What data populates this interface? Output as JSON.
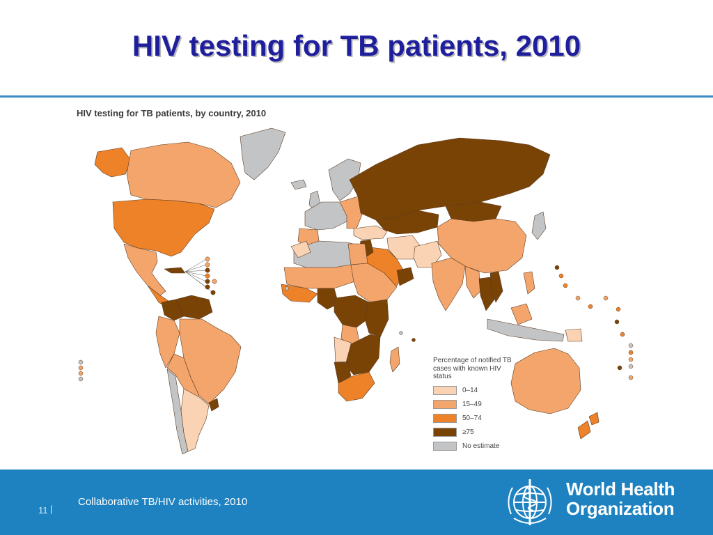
{
  "slide": {
    "title": "HIV testing for TB patients, 2010",
    "number": "11",
    "separator": "|",
    "footer_text": "Collaborative TB/HIV activities, 2010"
  },
  "map": {
    "subtitle": "HIV testing for TB patients, by country, 2010",
    "legend_title": "Percentage of notified TB cases with known HIV status",
    "legend": [
      {
        "label": "0–14",
        "color": "#f9d3b3"
      },
      {
        "label": "15–49",
        "color": "#f4a56c"
      },
      {
        "label": "50–74",
        "color": "#ee8228"
      },
      {
        "label": "≥75",
        "color": "#7a4306"
      },
      {
        "label": "No estimate",
        "color": "#c3c4c6"
      }
    ],
    "water_color": "#ffffff",
    "border_color": "#5a3a20"
  },
  "logo": {
    "line1": "World Health",
    "line2": "Organization",
    "icon": "who-emblem-icon"
  },
  "colors": {
    "title": "#1f1f9e",
    "rule": "#3a8cc4",
    "footer": "#1f82c0"
  }
}
